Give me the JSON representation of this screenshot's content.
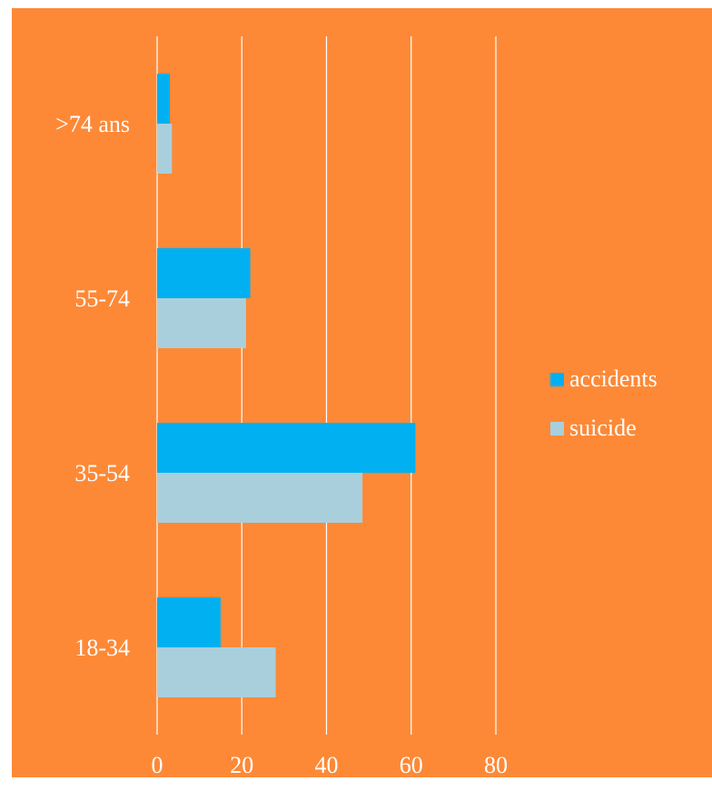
{
  "chart_data": {
    "type": "bar",
    "orientation": "horizontal",
    "categories": [
      ">74 ans",
      "55-74",
      "35-54",
      "18-34"
    ],
    "series": [
      {
        "name": "accidents",
        "values": [
          3,
          22,
          61,
          15
        ],
        "color": "#00b0f0"
      },
      {
        "name": "suicide",
        "values": [
          3.5,
          21,
          48.5,
          28
        ],
        "color": "#a9cfdc"
      }
    ],
    "xticks": [
      "0",
      "20",
      "40",
      "60",
      "80"
    ],
    "xlim": [
      0,
      80
    ],
    "grid": true,
    "legend": "right",
    "background": "#fd8937",
    "gridline_color": "#ffffff",
    "text_color": "#ffffff"
  }
}
